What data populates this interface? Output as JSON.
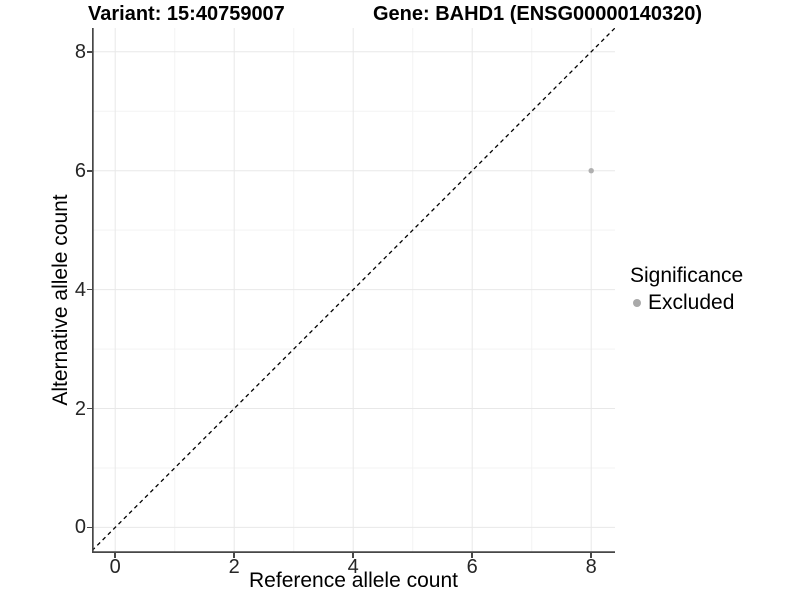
{
  "chart_data": {
    "type": "scatter",
    "title_variant": "Variant: 15:40759007",
    "title_gene": "Gene: BAHD1 (ENSG00000140320)",
    "xlabel": "Reference allele count",
    "ylabel": "Alternative allele count",
    "xlim": [
      -0.39,
      8.4
    ],
    "ylim": [
      -0.43,
      8.4
    ],
    "x_ticks": [
      0,
      2,
      4,
      6,
      8
    ],
    "y_ticks": [
      0,
      2,
      4,
      6,
      8
    ],
    "grid_positions": [
      0,
      1,
      2,
      3,
      4,
      5,
      6,
      7,
      8
    ],
    "major_grid": [
      0,
      2,
      4,
      6,
      8
    ],
    "identity_line": {
      "slope": 1,
      "intercept": 0,
      "style": "dashed",
      "color": "#000000"
    },
    "series": [
      {
        "name": "Excluded",
        "color": "#b0b0b0",
        "points": [
          {
            "x": 8,
            "y": 6
          }
        ]
      }
    ],
    "legend": {
      "title": "Significance",
      "position": "right",
      "items": [
        {
          "label": "Excluded",
          "color": "#a9a9a9"
        }
      ]
    },
    "colors": {
      "grid_major": "#e8e8e8",
      "grid_minor": "#f3f3f3",
      "axis_line": "#474747",
      "tick_label": "#262626",
      "background": "#ffffff"
    }
  }
}
